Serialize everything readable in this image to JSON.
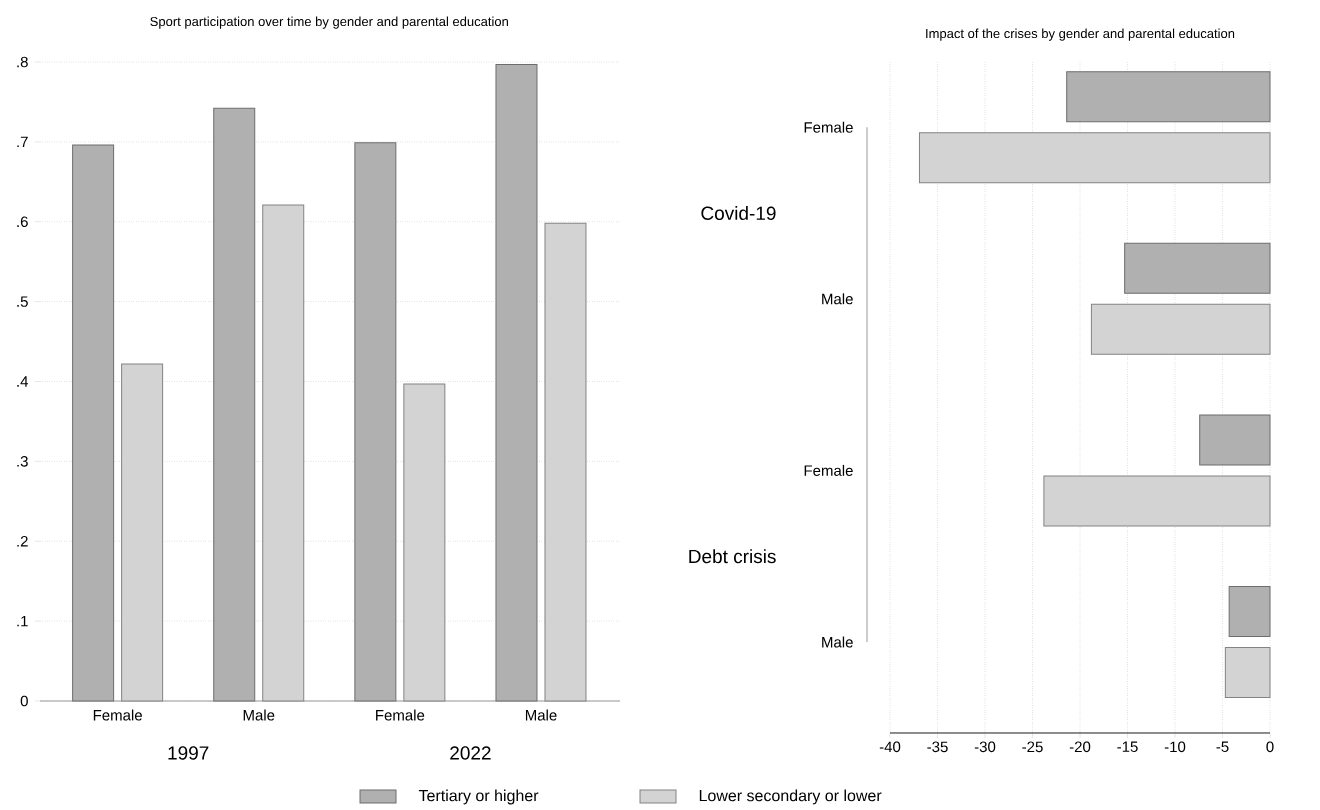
{
  "chart_data": [
    {
      "type": "bar",
      "title": "Sport participation over time by gender and parental education",
      "categories": [
        "Female",
        "Male",
        "Female",
        "Male"
      ],
      "annotations": [
        "1997",
        "2022"
      ],
      "series": [
        {
          "name": "Tertiary or higher",
          "color": "#b0b0b0",
          "values": [
            0.696,
            0.742,
            0.699,
            0.797
          ]
        },
        {
          "name": "Lower secondary or lower",
          "color": "#d3d3d3",
          "values": [
            0.422,
            0.621,
            0.397,
            0.598
          ]
        }
      ],
      "ylim": [
        0,
        0.8
      ],
      "yticks": [
        0,
        {
          "value": 0.1,
          "label": ".1"
        },
        {
          "value": 0.2,
          "label": ".2"
        },
        {
          "value": 0.3,
          "label": ".3"
        },
        {
          "value": 0.4,
          "label": ".4"
        },
        {
          "value": 0.5,
          "label": ".5"
        },
        {
          "value": 0.6,
          "label": ".6"
        },
        {
          "value": 0.7,
          "label": ".7"
        },
        {
          "value": 0.8,
          "label": ".8"
        }
      ],
      "grid": "y",
      "legend": "bottom"
    },
    {
      "type": "bar",
      "orientation": "horizontal",
      "title": "Impact of the crises by gender and parental education",
      "categories": [
        "Female",
        "Male",
        "Female",
        "Male"
      ],
      "annotations": [
        "Covid-19",
        "Debt crisis"
      ],
      "series": [
        {
          "color": "#b0b0b0",
          "values": [
            -21.4,
            -15.3,
            -7.4,
            -4.3
          ]
        },
        {
          "color": "#d3d3d3",
          "values": [
            -36.9,
            -18.8,
            -23.8,
            -4.7
          ]
        }
      ],
      "xlim": [
        -40,
        0
      ],
      "xticks": [
        -40,
        -35,
        -30,
        -25,
        -20,
        -15,
        -10,
        -5,
        0
      ],
      "grid": "x"
    }
  ]
}
